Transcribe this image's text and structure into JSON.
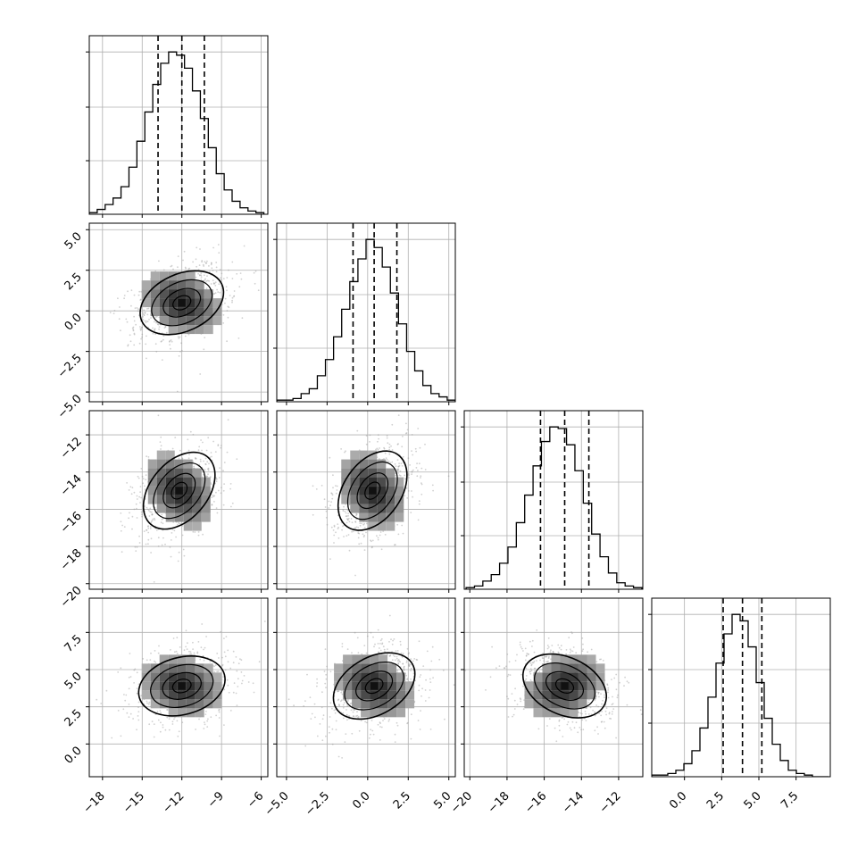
{
  "chart_data": {
    "type": "corner",
    "parameters": 4,
    "grid": true,
    "axes": [
      {
        "range": [
          -19,
          -5.5
        ],
        "ticks": [
          -18,
          -15,
          -12,
          -9,
          -6
        ],
        "tick_labels": [
          "−18",
          "−15",
          "−12",
          "−9",
          "−6"
        ]
      },
      {
        "range": [
          -5.6,
          5.4
        ],
        "ticks": [
          -5.0,
          -2.5,
          0.0,
          2.5,
          5.0
        ],
        "tick_labels": [
          "−5.0",
          "−2.5",
          "0.0",
          "2.5",
          "5.0"
        ]
      },
      {
        "range": [
          -20.3,
          -10.7
        ],
        "ticks": [
          -20,
          -18,
          -16,
          -14,
          -12
        ],
        "tick_labels": [
          "−20",
          "−18",
          "−16",
          "−14",
          "−12"
        ]
      },
      {
        "range": [
          -2.2,
          9.8
        ],
        "ticks": [
          0.0,
          2.5,
          5.0,
          7.5
        ],
        "tick_labels": [
          "0.0",
          "2.5",
          "5.0",
          "7.5"
        ]
      }
    ],
    "histograms": [
      {
        "parameter": 0,
        "quantiles": [
          -13.8,
          -12.0,
          -10.3
        ],
        "edges": [
          -19,
          -18.4,
          -17.8,
          -17.2,
          -16.6,
          -16,
          -15.4,
          -14.8,
          -14.2,
          -13.6,
          -13,
          -12.4,
          -11.8,
          -11.2,
          -10.6,
          -10,
          -9.4,
          -8.8,
          -8.2,
          -7.6,
          -7,
          -6.4,
          -5.8
        ],
        "counts": [
          1,
          3,
          6,
          10,
          17,
          29,
          45,
          63,
          80,
          93,
          100,
          98,
          90,
          76,
          59,
          41,
          25,
          15,
          8,
          4,
          2,
          1
        ]
      },
      {
        "parameter": 1,
        "quantiles": [
          -0.9,
          0.4,
          1.8
        ],
        "edges": [
          -5.6,
          -5.1,
          -4.6,
          -4.1,
          -3.6,
          -3.1,
          -2.6,
          -2.1,
          -1.6,
          -1.1,
          -0.6,
          -0.1,
          0.4,
          0.9,
          1.4,
          1.9,
          2.4,
          2.9,
          3.4,
          3.9,
          4.4,
          4.9,
          5.4
        ],
        "counts": [
          1,
          1,
          2,
          5,
          8,
          16,
          26,
          40,
          57,
          74,
          88,
          100,
          95,
          83,
          67,
          48,
          31,
          19,
          10,
          5,
          3,
          1
        ]
      },
      {
        "parameter": 2,
        "quantiles": [
          -16.2,
          -14.9,
          -13.6
        ],
        "edges": [
          -20.2,
          -19.75,
          -19.3,
          -18.85,
          -18.4,
          -17.95,
          -17.5,
          -17.05,
          -16.6,
          -16.15,
          -15.7,
          -15.25,
          -14.8,
          -14.35,
          -13.9,
          -13.45,
          -13.0,
          -12.55,
          -12.1,
          -11.65,
          -11.2,
          -10.75
        ],
        "counts": [
          1,
          2,
          5,
          9,
          16,
          26,
          41,
          58,
          76,
          91,
          100,
          99,
          89,
          73,
          53,
          34,
          20,
          10,
          4,
          2,
          1
        ]
      },
      {
        "parameter": 3,
        "quantiles": [
          2.6,
          3.9,
          5.2
        ],
        "edges": [
          -2.2,
          -1.66,
          -1.12,
          -0.58,
          -0.04,
          0.5,
          1.04,
          1.58,
          2.12,
          2.66,
          3.2,
          3.74,
          4.28,
          4.82,
          5.36,
          5.9,
          6.44,
          6.98,
          7.52,
          8.06,
          8.6,
          9.14,
          9.68
        ],
        "counts": [
          1,
          1,
          2,
          4,
          8,
          16,
          30,
          49,
          70,
          88,
          100,
          96,
          80,
          58,
          36,
          20,
          10,
          4,
          2,
          1,
          0,
          0
        ]
      }
    ],
    "pairs": [
      {
        "x": 0,
        "y": 1,
        "center": [
          -12.0,
          0.5
        ],
        "rotation_deg": 25,
        "contours": [
          [
            1.0,
            0.9,
            0.9,
            0.4
          ],
          [
            2.1,
            1.75,
            1.75,
            0.85
          ],
          [
            3.4,
            2.8,
            2.8,
            1.35
          ],
          [
            4.7,
            3.9,
            3.9,
            1.9
          ]
        ]
      },
      {
        "x": 0,
        "y": 2,
        "center": [
          -12.2,
          -15.0
        ],
        "rotation_deg": 50,
        "contours": [
          [
            1.0,
            0.9,
            0.9,
            0.4
          ],
          [
            2.1,
            1.75,
            1.75,
            0.85
          ],
          [
            3.4,
            2.8,
            2.8,
            1.35
          ],
          [
            4.7,
            3.9,
            3.9,
            1.9
          ]
        ]
      },
      {
        "x": 1,
        "y": 2,
        "center": [
          0.3,
          -15.0
        ],
        "rotation_deg": 55,
        "contours": [
          [
            1.0,
            0.9,
            0.9,
            0.4
          ],
          [
            2.1,
            1.75,
            1.75,
            0.85
          ],
          [
            3.4,
            2.8,
            2.8,
            1.35
          ],
          [
            4.7,
            3.9,
            3.9,
            1.9
          ]
        ]
      },
      {
        "x": 0,
        "y": 3,
        "center": [
          -12.0,
          3.9
        ],
        "rotation_deg": 15,
        "contours": [
          [
            1.0,
            0.9,
            0.9,
            0.4
          ],
          [
            2.1,
            1.75,
            1.75,
            0.85
          ],
          [
            3.4,
            2.8,
            2.8,
            1.35
          ],
          [
            4.7,
            3.9,
            3.9,
            1.9
          ]
        ]
      },
      {
        "x": 1,
        "y": 3,
        "center": [
          0.4,
          3.9
        ],
        "rotation_deg": 30,
        "contours": [
          [
            1.0,
            0.9,
            0.9,
            0.4
          ],
          [
            2.1,
            1.75,
            1.75,
            0.85
          ],
          [
            3.4,
            2.8,
            2.8,
            1.35
          ],
          [
            4.7,
            3.9,
            3.9,
            1.9
          ]
        ]
      },
      {
        "x": 2,
        "y": 3,
        "center": [
          -14.9,
          3.9
        ],
        "rotation_deg": -25,
        "contours": [
          [
            1.0,
            0.9,
            0.9,
            0.4
          ],
          [
            2.1,
            1.75,
            1.75,
            0.85
          ],
          [
            3.4,
            2.8,
            2.8,
            1.35
          ],
          [
            4.7,
            3.9,
            3.9,
            1.9
          ]
        ]
      }
    ],
    "colors": {
      "line": "#000000",
      "grid": "#b0b0b0",
      "scatter": "#9a9a9a",
      "axes": "#000000"
    }
  }
}
